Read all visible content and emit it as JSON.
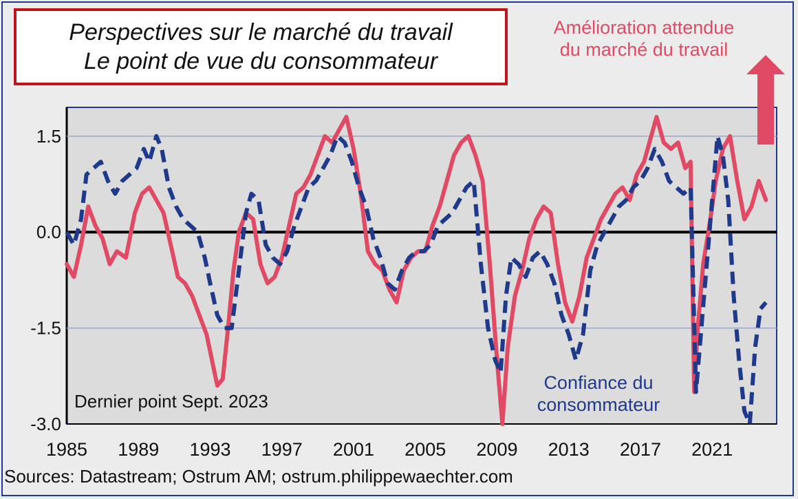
{
  "chart_data": {
    "type": "line",
    "title": "Perspectives sur le marché du travail",
    "subtitle": "Le point de vue du consommateur",
    "xlabel": "",
    "ylabel": "",
    "x_ticks": [
      "1985",
      "1989",
      "1993",
      "1997",
      "2001",
      "2005",
      "2009",
      "2013",
      "2017",
      "2021"
    ],
    "x_tick_years": [
      1985,
      1989,
      1993,
      1997,
      2001,
      2005,
      2009,
      2013,
      2017,
      2021
    ],
    "y_ticks": [
      "1.5",
      "0.0",
      "-1.5",
      "-3.0"
    ],
    "y_tick_values": [
      1.5,
      0,
      -1.5,
      -3
    ],
    "xlim": [
      1985,
      2024.6
    ],
    "ylim": [
      -3.0,
      1.95
    ],
    "grid": "horizontal",
    "legend": "none",
    "series": [
      {
        "name": "Amélioration attendue du marché du travail",
        "color": "#e04a64",
        "style": "solid",
        "x": [
          1985.0,
          1985.4,
          1985.8,
          1986.2,
          1986.6,
          1987.0,
          1987.4,
          1987.8,
          1988.3,
          1988.8,
          1989.2,
          1989.6,
          1990.0,
          1990.4,
          1990.8,
          1991.2,
          1991.6,
          1992.0,
          1992.4,
          1992.8,
          1993.1,
          1993.4,
          1993.7,
          1994.0,
          1994.3,
          1994.6,
          1995.0,
          1995.4,
          1995.8,
          1996.2,
          1996.6,
          1997.0,
          1997.4,
          1997.8,
          1998.2,
          1998.6,
          1999.0,
          1999.4,
          1999.8,
          2000.2,
          2000.6,
          2001.0,
          2001.4,
          2001.8,
          2002.2,
          2002.6,
          2003.0,
          2003.4,
          2003.8,
          2004.2,
          2004.6,
          2005.0,
          2005.4,
          2005.8,
          2006.2,
          2006.6,
          2007.0,
          2007.4,
          2007.8,
          2008.2,
          2008.6,
          2009.0,
          2009.3,
          2009.6,
          2010.0,
          2010.4,
          2010.8,
          2011.2,
          2011.6,
          2012.0,
          2012.4,
          2012.8,
          2013.2,
          2013.6,
          2014.0,
          2014.4,
          2014.8,
          2015.2,
          2015.6,
          2016.0,
          2016.4,
          2016.8,
          2017.2,
          2017.6,
          2017.9,
          2018.3,
          2018.7,
          2019.1,
          2019.5,
          2019.8,
          2020.0,
          2020.2,
          2020.5,
          2020.9,
          2021.2,
          2021.6,
          2022.0,
          2022.4,
          2022.8,
          2023.2,
          2023.6,
          2024.0
        ],
        "y": [
          -0.5,
          -0.7,
          -0.2,
          0.4,
          0.1,
          -0.1,
          -0.5,
          -0.3,
          -0.4,
          0.3,
          0.6,
          0.7,
          0.5,
          0.3,
          -0.2,
          -0.7,
          -0.8,
          -1.0,
          -1.3,
          -1.6,
          -2.0,
          -2.4,
          -2.3,
          -1.5,
          -0.6,
          0.0,
          0.3,
          0.2,
          -0.5,
          -0.8,
          -0.7,
          -0.4,
          0.1,
          0.6,
          0.7,
          0.9,
          1.2,
          1.5,
          1.4,
          1.6,
          1.8,
          1.3,
          0.6,
          -0.3,
          -0.5,
          -0.6,
          -0.9,
          -1.1,
          -0.6,
          -0.4,
          -0.3,
          -0.3,
          0.1,
          0.4,
          0.8,
          1.2,
          1.4,
          1.5,
          1.2,
          0.8,
          -0.5,
          -2.0,
          -3.0,
          -1.8,
          -1.0,
          -0.6,
          -0.1,
          0.2,
          0.4,
          0.3,
          -0.5,
          -1.1,
          -1.4,
          -1.0,
          -0.4,
          -0.1,
          0.2,
          0.4,
          0.6,
          0.7,
          0.5,
          0.9,
          1.1,
          1.5,
          1.8,
          1.4,
          1.3,
          1.4,
          1.0,
          1.1,
          -2.5,
          -1.5,
          -0.5,
          0.2,
          0.8,
          1.3,
          1.5,
          0.8,
          0.2,
          0.4,
          0.8,
          0.5
        ]
      },
      {
        "name": "Confiance du consommateur",
        "color": "#1f3a8a",
        "style": "dashed",
        "x": [
          1985.0,
          1985.4,
          1985.8,
          1986.1,
          1986.5,
          1986.9,
          1987.3,
          1987.7,
          1988.1,
          1988.5,
          1988.9,
          1989.3,
          1989.6,
          1990.0,
          1990.3,
          1990.7,
          1991.1,
          1991.5,
          1991.9,
          1992.3,
          1992.7,
          1993.0,
          1993.4,
          1993.8,
          1994.2,
          1994.6,
          1995.0,
          1995.3,
          1995.7,
          1996.1,
          1996.5,
          1996.9,
          1997.3,
          1997.7,
          1998.1,
          1998.5,
          1998.9,
          1999.3,
          1999.7,
          2000.1,
          2000.5,
          2000.9,
          2001.3,
          2001.7,
          2002.1,
          2002.5,
          2002.9,
          2003.3,
          2003.7,
          2004.1,
          2004.5,
          2004.9,
          2005.3,
          2005.7,
          2006.1,
          2006.5,
          2006.9,
          2007.3,
          2007.7,
          2008.1,
          2008.5,
          2008.9,
          2009.2,
          2009.5,
          2009.8,
          2010.2,
          2010.6,
          2011.0,
          2011.4,
          2011.8,
          2012.2,
          2012.6,
          2013.0,
          2013.4,
          2013.8,
          2014.2,
          2014.6,
          2015.0,
          2015.4,
          2015.8,
          2016.2,
          2016.6,
          2017.0,
          2017.4,
          2017.8,
          2018.2,
          2018.6,
          2019.0,
          2019.4,
          2019.8,
          2020.1,
          2020.4,
          2020.7,
          2021.0,
          2021.3,
          2021.6,
          2021.9,
          2022.2,
          2022.5,
          2022.8,
          2023.1,
          2023.4,
          2023.7,
          2024.0
        ],
        "y": [
          0.0,
          -0.2,
          0.2,
          0.9,
          1.0,
          1.1,
          0.8,
          0.6,
          0.8,
          0.9,
          1.0,
          1.3,
          1.1,
          1.5,
          1.3,
          0.7,
          0.4,
          0.2,
          0.1,
          0.0,
          -0.4,
          -0.8,
          -1.3,
          -1.5,
          -1.5,
          -0.6,
          0.3,
          0.6,
          0.5,
          -0.2,
          -0.4,
          -0.5,
          -0.3,
          0.1,
          0.4,
          0.7,
          0.8,
          1.0,
          1.2,
          1.5,
          1.4,
          1.1,
          0.7,
          0.4,
          -0.1,
          -0.4,
          -0.8,
          -0.9,
          -0.6,
          -0.4,
          -0.3,
          -0.3,
          -0.2,
          0.1,
          0.2,
          0.3,
          0.5,
          0.7,
          0.8,
          -0.5,
          -1.5,
          -2.0,
          -2.2,
          -1.0,
          -0.4,
          -0.5,
          -0.7,
          -0.4,
          -0.3,
          -0.5,
          -0.8,
          -1.3,
          -1.6,
          -2.0,
          -1.6,
          -0.6,
          -0.2,
          0.0,
          0.2,
          0.4,
          0.5,
          0.7,
          0.8,
          1.0,
          1.3,
          1.1,
          0.8,
          0.7,
          0.6,
          0.7,
          -2.5,
          -1.5,
          -0.5,
          0.5,
          1.5,
          1.2,
          0.5,
          -1.0,
          -2.0,
          -2.8,
          -3.0,
          -1.8,
          -1.2,
          -1.1
        ]
      }
    ]
  },
  "annotations": {
    "top_right": [
      "Amélioration attendue",
      "du marché du travail"
    ],
    "bottom_series": [
      "Confiance du",
      "consommateur"
    ],
    "last_point": "Dernier point Sept. 2023"
  },
  "sources": "Sources: Datastream; Ostrum AM; ostrum.philippewaechter.com",
  "colors": {
    "background": "#ececec",
    "plot_background": "#dcdcdc",
    "title_border": "#c0141c",
    "arrow": "#e04a64"
  }
}
